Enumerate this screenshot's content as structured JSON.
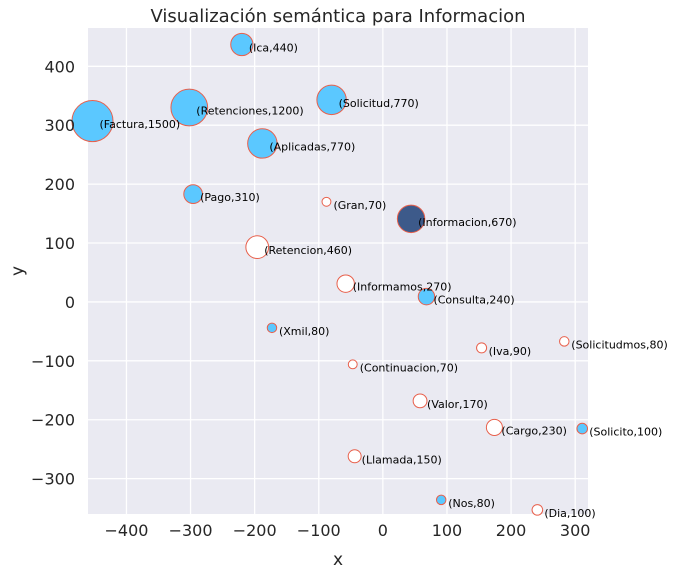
{
  "chart_data": {
    "type": "scatter",
    "title": "Visualización semántica para Informacion",
    "xlabel": "x",
    "ylabel": "y",
    "xlim": [
      -460,
      320
    ],
    "ylim": [
      -360,
      465
    ],
    "xticks": [
      -400,
      -300,
      -200,
      -100,
      0,
      100,
      200,
      300
    ],
    "yticks": [
      -300,
      -200,
      -100,
      0,
      100,
      200,
      300,
      400
    ],
    "xtick_labels": [
      "−400",
      "−300",
      "−200",
      "−100",
      "0",
      "100",
      "200",
      "300"
    ],
    "ytick_labels": [
      "−300",
      "−200",
      "−100",
      "0",
      "100",
      "200",
      "300",
      "400"
    ],
    "grid": true,
    "colors": {
      "background": "#eaeaf2",
      "grid": "#ffffff",
      "fill_related": "#5bc8ff",
      "fill_focus": "#3d5a8a",
      "fill_unrelated": "#ffffff",
      "edge": "#e8604c"
    },
    "points": [
      {
        "word": "Ica",
        "x": -220,
        "y": 437,
        "size": 440,
        "fill": "related",
        "label": "(Ica,440)"
      },
      {
        "word": "Retenciones",
        "x": -302,
        "y": 330,
        "size": 1200,
        "fill": "related",
        "label": "(Retenciones,1200)"
      },
      {
        "word": "Solicitud",
        "x": -80,
        "y": 343,
        "size": 770,
        "fill": "related",
        "label": "(Solicitud,770)"
      },
      {
        "word": "Factura",
        "x": -453,
        "y": 307,
        "size": 1500,
        "fill": "related",
        "label": "(Factura,1500)"
      },
      {
        "word": "Aplicadas",
        "x": -188,
        "y": 269,
        "size": 770,
        "fill": "related",
        "label": "(Aplicadas,770)"
      },
      {
        "word": "Pago",
        "x": -296,
        "y": 183,
        "size": 310,
        "fill": "related",
        "label": "(Pago,310)"
      },
      {
        "word": "Gran",
        "x": -88,
        "y": 170,
        "size": 70,
        "fill": "unrelated",
        "label": "(Gran,70)"
      },
      {
        "word": "Informacion",
        "x": 44,
        "y": 141,
        "size": 670,
        "fill": "focus",
        "label": "(Informacion,670)"
      },
      {
        "word": "Retencion",
        "x": -196,
        "y": 93,
        "size": 460,
        "fill": "unrelated",
        "label": "(Retencion,460)"
      },
      {
        "word": "Informamos",
        "x": -58,
        "y": 31,
        "size": 270,
        "fill": "unrelated",
        "label": "(Informamos,270)"
      },
      {
        "word": "Consulta",
        "x": 68,
        "y": 9,
        "size": 240,
        "fill": "related",
        "label": "(Consulta,240)"
      },
      {
        "word": "Xmil",
        "x": -173,
        "y": -44,
        "size": 80,
        "fill": "related",
        "label": "(Xmil,80)"
      },
      {
        "word": "Solicitudmos",
        "x": 283,
        "y": -67,
        "size": 80,
        "fill": "unrelated",
        "label": "(Solicitudmos,80)"
      },
      {
        "word": "Iva",
        "x": 154,
        "y": -78,
        "size": 90,
        "fill": "unrelated",
        "label": "(Iva,90)"
      },
      {
        "word": "Continuacion",
        "x": -47,
        "y": -106,
        "size": 70,
        "fill": "unrelated",
        "label": "(Continuacion,70)"
      },
      {
        "word": "Valor",
        "x": 58,
        "y": -168,
        "size": 170,
        "fill": "unrelated",
        "label": "(Valor,170)"
      },
      {
        "word": "Cargo",
        "x": 174,
        "y": -213,
        "size": 230,
        "fill": "unrelated",
        "label": "(Cargo,230)"
      },
      {
        "word": "Solicito",
        "x": 311,
        "y": -215,
        "size": 100,
        "fill": "related",
        "label": "(Solicito,100)"
      },
      {
        "word": "Llamada",
        "x": -44,
        "y": -262,
        "size": 150,
        "fill": "unrelated",
        "label": "(Llamada,150)"
      },
      {
        "word": "Nos",
        "x": 91,
        "y": -336,
        "size": 80,
        "fill": "related",
        "label": "(Nos,80)"
      },
      {
        "word": "Dia",
        "x": 241,
        "y": -353,
        "size": 100,
        "fill": "unrelated",
        "label": "(Dia,100)"
      }
    ]
  }
}
